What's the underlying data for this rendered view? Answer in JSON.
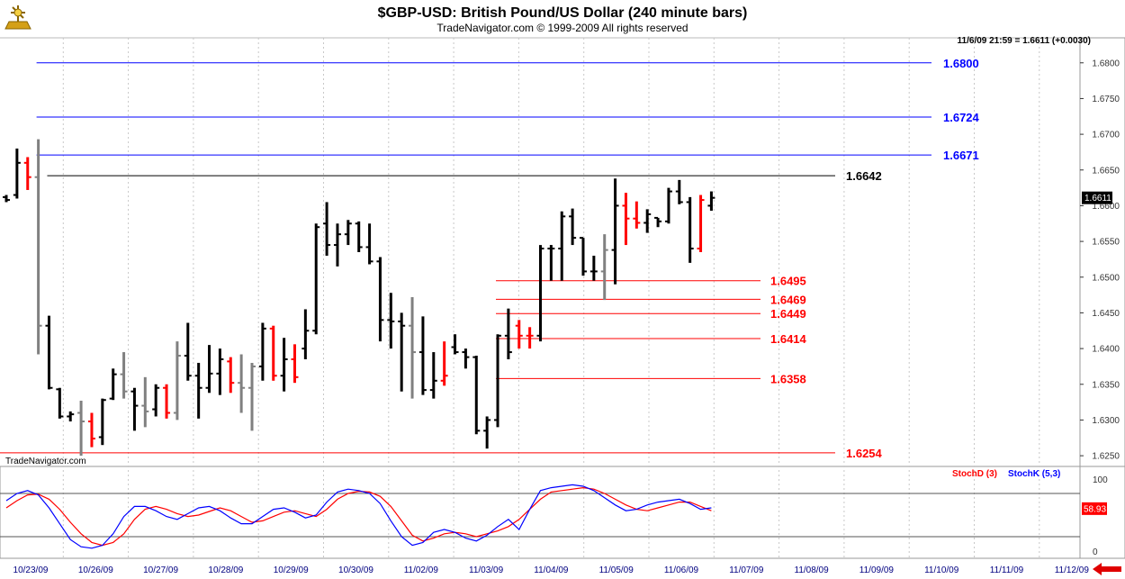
{
  "header": {
    "title": "$GBP-USD:  British Pound/US Dollar  (240 minute bars)",
    "subtitle": "TradeNavigator.com © 1999-2009 All rights reserved",
    "quote": "11/6/09 21:59 = 1.6611 (+0.0030)",
    "watermark": "TradeNavigator.com"
  },
  "chart_data": [
    {
      "type": "ohlc",
      "ylim": [
        1.6235,
        1.6835
      ],
      "y_ticks": [
        "1.6250",
        "1.6300",
        "1.6350",
        "1.6400",
        "1.6450",
        "1.6500",
        "1.6550",
        "1.6600",
        "1.6650",
        "1.6700",
        "1.6750",
        "1.6800"
      ],
      "x_labels": [
        "10/23/09",
        "10/26/09",
        "10/27/09",
        "10/28/09",
        "10/29/09",
        "10/30/09",
        "11/02/09",
        "11/03/09",
        "11/04/09",
        "11/05/09",
        "11/06/09",
        "11/07/09",
        "11/08/09",
        "11/09/09",
        "11/10/09",
        "11/11/09",
        "11/12/09"
      ],
      "last_price": "1.6611",
      "bar_colors": {
        "up": "#000000",
        "down": "#ff0000",
        "neutral": "#808080"
      },
      "bars": [
        {
          "high": 1.6615,
          "low": 1.6605,
          "open": 1.6612,
          "close": 1.6608,
          "color": "black"
        },
        {
          "high": 1.668,
          "low": 1.661,
          "open": 1.6615,
          "close": 1.666,
          "color": "black"
        },
        {
          "high": 1.6668,
          "low": 1.6622,
          "open": 1.666,
          "close": 1.664,
          "color": "red"
        },
        {
          "high": 1.6693,
          "low": 1.6392,
          "open": 1.664,
          "close": 1.6432,
          "color": "gray"
        },
        {
          "high": 1.6446,
          "low": 1.6343,
          "open": 1.6432,
          "close": 1.6345,
          "color": "black"
        },
        {
          "high": 1.6345,
          "low": 1.6302,
          "open": 1.6343,
          "close": 1.6305,
          "color": "black"
        },
        {
          "high": 1.6312,
          "low": 1.6298,
          "open": 1.6305,
          "close": 1.6308,
          "color": "black"
        },
        {
          "high": 1.6327,
          "low": 1.625,
          "open": 1.631,
          "close": 1.6298,
          "color": "gray"
        },
        {
          "high": 1.631,
          "low": 1.6262,
          "open": 1.6298,
          "close": 1.6274,
          "color": "red"
        },
        {
          "high": 1.633,
          "low": 1.6265,
          "open": 1.6276,
          "close": 1.6328,
          "color": "black"
        },
        {
          "high": 1.6372,
          "low": 1.6328,
          "open": 1.633,
          "close": 1.6364,
          "color": "black"
        },
        {
          "high": 1.6395,
          "low": 1.633,
          "open": 1.6364,
          "close": 1.634,
          "color": "gray"
        },
        {
          "high": 1.6345,
          "low": 1.6285,
          "open": 1.634,
          "close": 1.632,
          "color": "black"
        },
        {
          "high": 1.636,
          "low": 1.629,
          "open": 1.632,
          "close": 1.6312,
          "color": "gray"
        },
        {
          "high": 1.635,
          "low": 1.6305,
          "open": 1.6315,
          "close": 1.6345,
          "color": "black"
        },
        {
          "high": 1.635,
          "low": 1.6302,
          "open": 1.6345,
          "close": 1.631,
          "color": "red"
        },
        {
          "high": 1.641,
          "low": 1.63,
          "open": 1.631,
          "close": 1.639,
          "color": "gray"
        },
        {
          "high": 1.6436,
          "low": 1.6355,
          "open": 1.639,
          "close": 1.6362,
          "color": "black"
        },
        {
          "high": 1.638,
          "low": 1.6302,
          "open": 1.6362,
          "close": 1.6345,
          "color": "black"
        },
        {
          "high": 1.6405,
          "low": 1.6338,
          "open": 1.6345,
          "close": 1.6365,
          "color": "black"
        },
        {
          "high": 1.64,
          "low": 1.6335,
          "open": 1.6365,
          "close": 1.6385,
          "color": "black"
        },
        {
          "high": 1.6388,
          "low": 1.6338,
          "open": 1.6382,
          "close": 1.6352,
          "color": "red"
        },
        {
          "high": 1.6392,
          "low": 1.631,
          "open": 1.6352,
          "close": 1.6345,
          "color": "gray"
        },
        {
          "high": 1.638,
          "low": 1.6285,
          "open": 1.6345,
          "close": 1.6375,
          "color": "gray"
        },
        {
          "high": 1.6436,
          "low": 1.6355,
          "open": 1.6375,
          "close": 1.6428,
          "color": "black"
        },
        {
          "high": 1.6432,
          "low": 1.6355,
          "open": 1.6428,
          "close": 1.6362,
          "color": "red"
        },
        {
          "high": 1.6415,
          "low": 1.634,
          "open": 1.6362,
          "close": 1.6385,
          "color": "black"
        },
        {
          "high": 1.6406,
          "low": 1.6352,
          "open": 1.6385,
          "close": 1.636,
          "color": "red"
        },
        {
          "high": 1.6455,
          "low": 1.6385,
          "open": 1.64,
          "close": 1.6425,
          "color": "black"
        },
        {
          "high": 1.6575,
          "low": 1.642,
          "open": 1.6425,
          "close": 1.657,
          "color": "black"
        },
        {
          "high": 1.6605,
          "low": 1.653,
          "open": 1.6575,
          "close": 1.6545,
          "color": "black"
        },
        {
          "high": 1.6575,
          "low": 1.6515,
          "open": 1.6545,
          "close": 1.656,
          "color": "black"
        },
        {
          "high": 1.658,
          "low": 1.6545,
          "open": 1.656,
          "close": 1.6575,
          "color": "black"
        },
        {
          "high": 1.6578,
          "low": 1.6535,
          "open": 1.6575,
          "close": 1.6542,
          "color": "black"
        },
        {
          "high": 1.6575,
          "low": 1.6518,
          "open": 1.6542,
          "close": 1.6522,
          "color": "black"
        },
        {
          "high": 1.6528,
          "low": 1.641,
          "open": 1.6522,
          "close": 1.644,
          "color": "black"
        },
        {
          "high": 1.6478,
          "low": 1.64,
          "open": 1.644,
          "close": 1.6438,
          "color": "black"
        },
        {
          "high": 1.645,
          "low": 1.634,
          "open": 1.6438,
          "close": 1.6432,
          "color": "black"
        },
        {
          "high": 1.6472,
          "low": 1.633,
          "open": 1.6432,
          "close": 1.6395,
          "color": "gray"
        },
        {
          "high": 1.6445,
          "low": 1.6335,
          "open": 1.6395,
          "close": 1.6342,
          "color": "black"
        },
        {
          "high": 1.6395,
          "low": 1.633,
          "open": 1.6342,
          "close": 1.6355,
          "color": "black"
        },
        {
          "high": 1.641,
          "low": 1.6348,
          "open": 1.6355,
          "close": 1.6362,
          "color": "red"
        },
        {
          "high": 1.642,
          "low": 1.6392,
          "open": 1.6402,
          "close": 1.6395,
          "color": "black"
        },
        {
          "high": 1.64,
          "low": 1.6372,
          "open": 1.6395,
          "close": 1.6388,
          "color": "black"
        },
        {
          "high": 1.639,
          "low": 1.628,
          "open": 1.6388,
          "close": 1.6285,
          "color": "black"
        },
        {
          "high": 1.6305,
          "low": 1.626,
          "open": 1.6285,
          "close": 1.63,
          "color": "black"
        },
        {
          "high": 1.642,
          "low": 1.629,
          "open": 1.63,
          "close": 1.6418,
          "color": "black"
        },
        {
          "high": 1.6456,
          "low": 1.6385,
          "open": 1.6418,
          "close": 1.6395,
          "color": "black"
        },
        {
          "high": 1.644,
          "low": 1.64,
          "open": 1.6432,
          "close": 1.6418,
          "color": "red"
        },
        {
          "high": 1.643,
          "low": 1.64,
          "open": 1.6418,
          "close": 1.6418,
          "color": "red"
        },
        {
          "high": 1.6545,
          "low": 1.641,
          "open": 1.6418,
          "close": 1.654,
          "color": "black"
        },
        {
          "high": 1.6545,
          "low": 1.6495,
          "open": 1.654,
          "close": 1.654,
          "color": "black"
        },
        {
          "high": 1.6592,
          "low": 1.6495,
          "open": 1.654,
          "close": 1.6585,
          "color": "black"
        },
        {
          "high": 1.6596,
          "low": 1.6545,
          "open": 1.6585,
          "close": 1.6555,
          "color": "black"
        },
        {
          "high": 1.6555,
          "low": 1.6502,
          "open": 1.6555,
          "close": 1.6508,
          "color": "black"
        },
        {
          "high": 1.653,
          "low": 1.6495,
          "open": 1.6508,
          "close": 1.6508,
          "color": "black"
        },
        {
          "high": 1.656,
          "low": 1.6468,
          "open": 1.6508,
          "close": 1.6538,
          "color": "gray"
        },
        {
          "high": 1.6638,
          "low": 1.649,
          "open": 1.6538,
          "close": 1.66,
          "color": "black"
        },
        {
          "high": 1.6618,
          "low": 1.6545,
          "open": 1.66,
          "close": 1.6582,
          "color": "red"
        },
        {
          "high": 1.6606,
          "low": 1.6568,
          "open": 1.6582,
          "close": 1.6576,
          "color": "red"
        },
        {
          "high": 1.6595,
          "low": 1.6562,
          "open": 1.6576,
          "close": 1.6588,
          "color": "black"
        },
        {
          "high": 1.6583,
          "low": 1.657,
          "open": 1.6583,
          "close": 1.6578,
          "color": "black"
        },
        {
          "high": 1.6625,
          "low": 1.6575,
          "open": 1.6578,
          "close": 1.662,
          "color": "black"
        },
        {
          "high": 1.6636,
          "low": 1.6602,
          "open": 1.662,
          "close": 1.6605,
          "color": "black"
        },
        {
          "high": 1.6612,
          "low": 1.652,
          "open": 1.6605,
          "close": 1.654,
          "color": "black"
        },
        {
          "high": 1.6615,
          "low": 1.6535,
          "open": 1.654,
          "close": 1.6608,
          "color": "red"
        },
        {
          "high": 1.662,
          "low": 1.6593,
          "open": 1.66,
          "close": 1.6611,
          "color": "black"
        }
      ],
      "levels": [
        {
          "value": 1.68,
          "label": "1.6800",
          "color": "#0000ff",
          "from": 3
        },
        {
          "value": 1.6724,
          "label": "1.6724",
          "color": "#0000ff",
          "from": 3
        },
        {
          "value": 1.6671,
          "label": "1.6671",
          "color": "#0000ff",
          "from": 3
        },
        {
          "value": 1.6642,
          "label": "1.6642",
          "color": "#000000",
          "from": 4
        },
        {
          "value": 1.6495,
          "label": "1.6495",
          "color": "#ff0000",
          "from": 46
        },
        {
          "value": 1.6469,
          "label": "1.6469",
          "color": "#ff0000",
          "from": 46
        },
        {
          "value": 1.6449,
          "label": "1.6449",
          "color": "#ff0000",
          "from": 46
        },
        {
          "value": 1.6414,
          "label": "1.6414",
          "color": "#ff0000",
          "from": 46
        },
        {
          "value": 1.6358,
          "label": "1.6358",
          "color": "#ff0000",
          "from": 46
        },
        {
          "value": 1.6254,
          "label": "1.6254",
          "color": "#ff0000",
          "from": 0
        }
      ]
    },
    {
      "type": "line",
      "ylim": [
        0,
        100
      ],
      "y_ticks": [
        "100",
        "0"
      ],
      "reference_lines": [
        80,
        20
      ],
      "last_value": "58.93",
      "series": [
        {
          "name": "StochD (3)",
          "color": "#ff0000",
          "values": [
            60,
            70,
            78,
            79,
            72,
            58,
            40,
            24,
            12,
            8,
            12,
            24,
            44,
            58,
            62,
            58,
            52,
            48,
            50,
            55,
            60,
            56,
            48,
            40,
            42,
            48,
            54,
            56,
            52,
            48,
            58,
            72,
            80,
            83,
            82,
            76,
            62,
            42,
            22,
            14,
            18,
            24,
            26,
            24,
            20,
            24,
            28,
            34,
            44,
            58,
            72,
            82,
            84,
            86,
            88,
            86,
            80,
            72,
            64,
            58,
            56,
            60,
            64,
            68,
            68,
            62,
            56
          ]
        },
        {
          "name": "StochK (5,3)",
          "color": "#0000ff",
          "values": [
            70,
            80,
            84,
            78,
            60,
            38,
            16,
            6,
            4,
            8,
            24,
            48,
            62,
            62,
            56,
            48,
            44,
            52,
            60,
            62,
            56,
            46,
            38,
            38,
            48,
            58,
            60,
            54,
            46,
            50,
            68,
            82,
            86,
            84,
            80,
            66,
            42,
            20,
            8,
            12,
            26,
            30,
            26,
            18,
            14,
            22,
            34,
            44,
            30,
            58,
            84,
            88,
            90,
            92,
            90,
            84,
            74,
            64,
            56,
            58,
            64,
            68,
            70,
            72,
            66,
            58,
            60
          ]
        }
      ],
      "legend": "top-right"
    }
  ]
}
